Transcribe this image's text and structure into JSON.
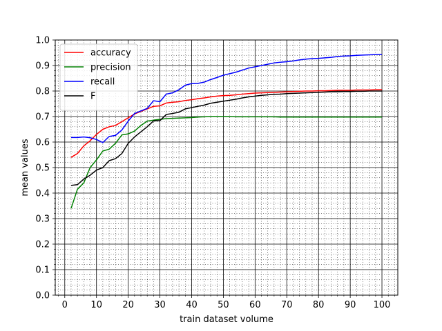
{
  "chart_data": {
    "type": "line",
    "title": "",
    "xlabel": "train dataset volume",
    "ylabel": "mean values",
    "xlim": [
      -3,
      105
    ],
    "ylim": [
      0,
      1
    ],
    "xticks": [
      0,
      10,
      20,
      30,
      40,
      50,
      60,
      70,
      80,
      90,
      100
    ],
    "yticks": [
      0.0,
      0.1,
      0.2,
      0.3,
      0.4,
      0.5,
      0.6,
      0.7,
      0.8,
      0.9,
      1.0
    ],
    "xtick_labels": [
      "0",
      "10",
      "20",
      "30",
      "40",
      "50",
      "60",
      "70",
      "80",
      "90",
      "100"
    ],
    "ytick_labels": [
      "0.0",
      "0.1",
      "0.2",
      "0.3",
      "0.4",
      "0.5",
      "0.6",
      "0.7",
      "0.8",
      "0.9",
      "1.0"
    ],
    "grid": true,
    "minor_grid": true,
    "legend_position": "top-left",
    "x": [
      2,
      4,
      6,
      8,
      10,
      12,
      14,
      16,
      18,
      20,
      22,
      24,
      26,
      28,
      30,
      32,
      34,
      36,
      38,
      40,
      42,
      44,
      46,
      48,
      50,
      52,
      54,
      56,
      58,
      60,
      62,
      64,
      66,
      68,
      70,
      72,
      74,
      76,
      78,
      80,
      82,
      84,
      86,
      88,
      90,
      92,
      94,
      96,
      98,
      100
    ],
    "series": [
      {
        "name": "accuracy",
        "color": "#ff0000",
        "values": [
          0.54,
          0.555,
          0.585,
          0.605,
          0.63,
          0.65,
          0.66,
          0.665,
          0.68,
          0.695,
          0.71,
          0.72,
          0.73,
          0.74,
          0.742,
          0.753,
          0.756,
          0.758,
          0.763,
          0.766,
          0.77,
          0.773,
          0.777,
          0.78,
          0.782,
          0.783,
          0.785,
          0.788,
          0.79,
          0.792,
          0.793,
          0.794,
          0.795,
          0.796,
          0.797,
          0.798,
          0.799,
          0.8,
          0.8,
          0.801,
          0.801,
          0.802,
          0.803,
          0.803,
          0.803,
          0.804,
          0.804,
          0.804,
          0.805,
          0.805
        ]
      },
      {
        "name": "precision",
        "color": "#008000",
        "values": [
          0.34,
          0.415,
          0.44,
          0.5,
          0.53,
          0.565,
          0.572,
          0.595,
          0.628,
          0.632,
          0.643,
          0.665,
          0.682,
          0.686,
          0.689,
          0.692,
          0.693,
          0.694,
          0.695,
          0.696,
          0.698,
          0.699,
          0.7,
          0.7,
          0.7,
          0.7,
          0.699,
          0.699,
          0.699,
          0.699,
          0.699,
          0.699,
          0.699,
          0.698,
          0.698,
          0.698,
          0.698,
          0.698,
          0.698,
          0.698,
          0.698,
          0.698,
          0.698,
          0.698,
          0.698,
          0.698,
          0.698,
          0.698,
          0.698,
          0.698
        ]
      },
      {
        "name": "recall",
        "color": "#0000ff",
        "values": [
          0.618,
          0.618,
          0.62,
          0.617,
          0.61,
          0.598,
          0.622,
          0.626,
          0.647,
          0.682,
          0.712,
          0.722,
          0.732,
          0.762,
          0.758,
          0.788,
          0.793,
          0.805,
          0.823,
          0.829,
          0.83,
          0.835,
          0.845,
          0.853,
          0.862,
          0.868,
          0.874,
          0.882,
          0.89,
          0.895,
          0.9,
          0.905,
          0.91,
          0.913,
          0.915,
          0.918,
          0.922,
          0.925,
          0.927,
          0.928,
          0.93,
          0.932,
          0.935,
          0.937,
          0.938,
          0.94,
          0.941,
          0.942,
          0.943,
          0.944
        ]
      },
      {
        "name": "F",
        "color": "#000000",
        "values": [
          0.43,
          0.433,
          0.455,
          0.47,
          0.49,
          0.5,
          0.527,
          0.535,
          0.555,
          0.595,
          0.62,
          0.64,
          0.66,
          0.683,
          0.684,
          0.708,
          0.712,
          0.717,
          0.73,
          0.735,
          0.74,
          0.745,
          0.752,
          0.756,
          0.76,
          0.764,
          0.768,
          0.773,
          0.777,
          0.78,
          0.783,
          0.785,
          0.787,
          0.788,
          0.79,
          0.791,
          0.792,
          0.793,
          0.794,
          0.795,
          0.796,
          0.797,
          0.797,
          0.798,
          0.798,
          0.799,
          0.799,
          0.8,
          0.8,
          0.8
        ]
      }
    ]
  }
}
